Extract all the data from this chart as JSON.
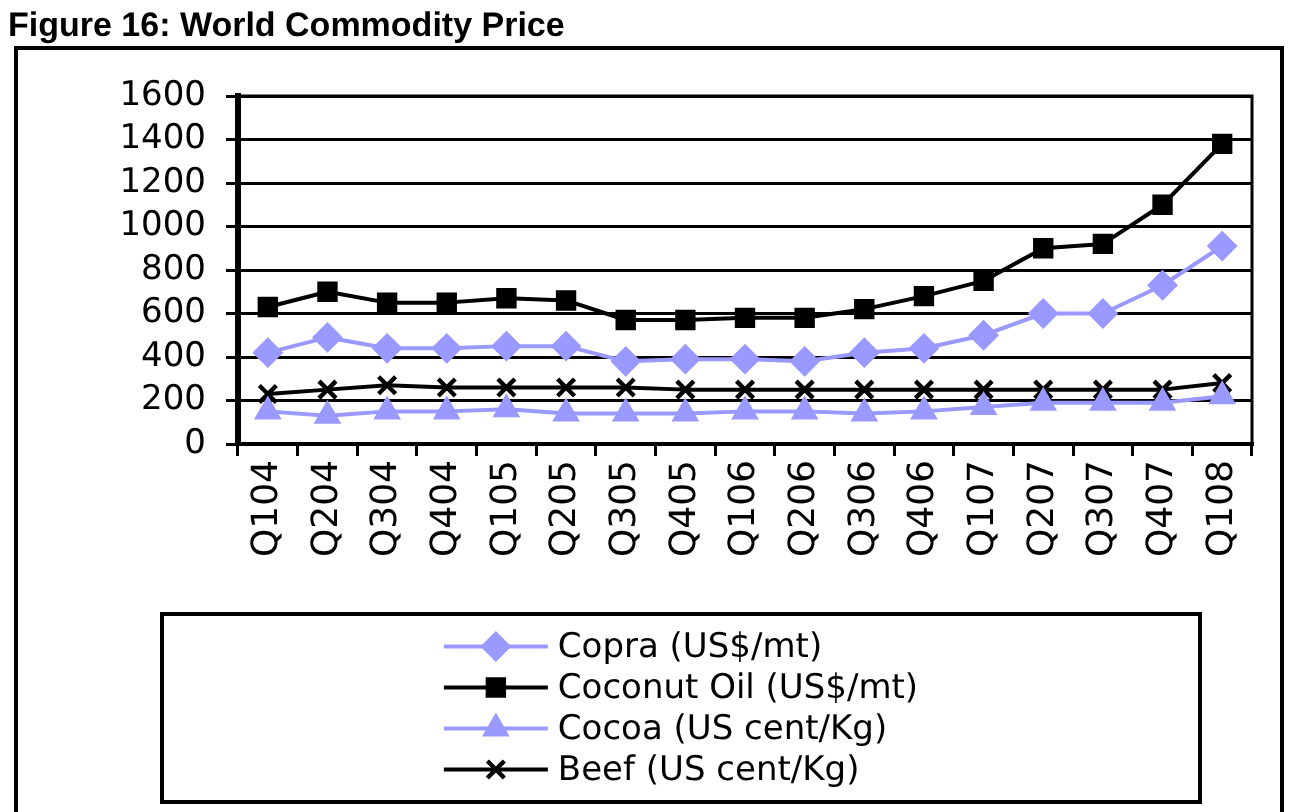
{
  "chart_data": {
    "type": "line",
    "title": "Figure 16: World Commodity Price",
    "categories": [
      "Q104",
      "Q204",
      "Q304",
      "Q404",
      "Q105",
      "Q205",
      "Q305",
      "Q405",
      "Q106",
      "Q206",
      "Q306",
      "Q406",
      "Q107",
      "Q207",
      "Q307",
      "Q407",
      "Q108"
    ],
    "series": [
      {
        "name": "Copra (US$/mt)",
        "color": "#9999ff",
        "marker": "diamond",
        "values": [
          420,
          490,
          440,
          440,
          450,
          450,
          380,
          390,
          390,
          380,
          420,
          440,
          500,
          600,
          600,
          730,
          910
        ]
      },
      {
        "name": "Coconut Oil (US$/mt)",
        "color": "#000000",
        "marker": "square",
        "values": [
          630,
          700,
          650,
          650,
          670,
          660,
          570,
          570,
          580,
          580,
          620,
          680,
          750,
          900,
          920,
          1100,
          1380
        ]
      },
      {
        "name": "Cocoa (US cent/Kg)",
        "color": "#9999ff",
        "marker": "triangle",
        "values": [
          150,
          130,
          150,
          150,
          160,
          140,
          140,
          140,
          150,
          150,
          140,
          150,
          170,
          190,
          190,
          190,
          220
        ]
      },
      {
        "name": "Beef (US cent/Kg)",
        "color": "#000000",
        "marker": "cross",
        "values": [
          230,
          250,
          270,
          260,
          260,
          260,
          260,
          250,
          250,
          250,
          250,
          250,
          250,
          250,
          250,
          250,
          280
        ]
      }
    ],
    "ylim": [
      0,
      1600
    ],
    "yticks": [
      0,
      200,
      400,
      600,
      800,
      1000,
      1200,
      1400,
      1600
    ],
    "grid": "y",
    "legend": "bottom"
  }
}
